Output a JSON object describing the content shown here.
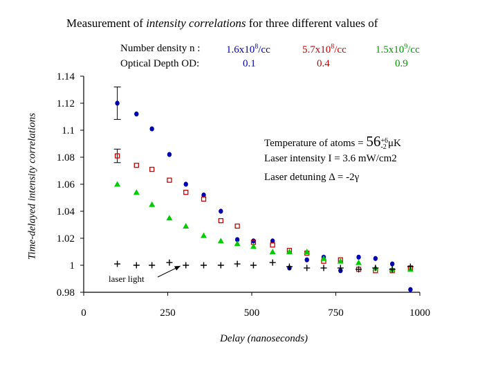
{
  "title": {
    "prefix": "Measurement of ",
    "emph": "intensity correlations",
    "suffix": " for three different values of"
  },
  "legend": {
    "density_label": "Number density n :",
    "od_label": "Optical Depth OD:",
    "series": [
      {
        "density": "1.6x10^8/cc",
        "density_base": "1.6x10",
        "density_exp": "8",
        "density_unit": "/cc",
        "od": "0.1",
        "color": "#0000b4"
      },
      {
        "density": "5.7x10^8/cc",
        "density_base": "5.7x10",
        "density_exp": "8",
        "density_unit": "/cc",
        "od": "0.4",
        "color": "#cc0000"
      },
      {
        "density": "1.5x10^9/cc",
        "density_base": "1.5x10",
        "density_exp": "9",
        "density_unit": "/cc",
        "od": "0.9",
        "color": "#009900"
      }
    ]
  },
  "conditions": {
    "temperature_label": "Temperature of atoms  =",
    "temperature_value": "56",
    "temperature_err_plus": "+6",
    "temperature_err_minus": "-2",
    "temperature_unit": "μK",
    "laser_intensity": "Laser intensity I = 3.6 mW/cm2",
    "laser_detuning": "Laser detuning Δ = -2γ"
  },
  "annotation": {
    "text": "laser light"
  },
  "chart_data": {
    "type": "scatter",
    "title": "Measurement of intensity correlations for three different values of",
    "xlabel": "Delay  (nanoseconds)",
    "ylabel": "Time-delayed intensity correlations",
    "xlim": [
      0,
      1000
    ],
    "ylim": [
      0.98,
      1.14
    ],
    "xticks": [
      0,
      250,
      500,
      750,
      1000
    ],
    "xtick_labels": [
      "0",
      "250",
      "500",
      "750",
      "1000"
    ],
    "yticks": [
      0.98,
      1.0,
      1.02,
      1.04,
      1.06,
      1.08,
      1.1,
      1.12,
      1.14
    ],
    "ytick_labels": [
      "0.98",
      "1",
      "1.02",
      "1.04",
      "1.06",
      "1.08",
      "1.1",
      "1.12",
      "1.14"
    ],
    "grid": false,
    "series": [
      {
        "name": "n = 1.6x10^8/cc, OD 0.1",
        "marker": "filled-circle",
        "color": "#0000b4",
        "x": [
          100,
          157,
          203,
          255,
          304,
          357,
          408,
          457,
          505,
          562,
          612,
          664,
          714,
          764,
          818,
          868,
          918,
          972
        ],
        "y": [
          1.12,
          1.112,
          1.101,
          1.082,
          1.06,
          1.052,
          1.04,
          1.019,
          1.018,
          1.018,
          0.998,
          1.004,
          1.006,
          0.996,
          1.006,
          1.005,
          1.001,
          0.982
        ]
      },
      {
        "name": "n = 5.7x10^8/cc, OD 0.4",
        "marker": "open-square",
        "color": "#cc0000",
        "x": [
          100,
          157,
          203,
          255,
          304,
          357,
          408,
          457,
          505,
          562,
          612,
          664,
          714,
          764,
          818,
          868,
          918,
          972
        ],
        "y": [
          1.081,
          1.074,
          1.071,
          1.063,
          1.054,
          1.049,
          1.033,
          1.029,
          1.017,
          1.015,
          1.011,
          1.009,
          1.003,
          1.004,
          0.997,
          0.996,
          0.996,
          0.998
        ]
      },
      {
        "name": "n = 1.5x10^9/cc, OD 0.9",
        "marker": "filled-triangle",
        "color": "#00cc00",
        "x": [
          100,
          157,
          203,
          255,
          304,
          357,
          408,
          457,
          505,
          562,
          612,
          664,
          714,
          764,
          818,
          868,
          918,
          972
        ],
        "y": [
          1.06,
          1.054,
          1.045,
          1.035,
          1.029,
          1.022,
          1.018,
          1.016,
          1.014,
          1.01,
          1.01,
          1.01,
          1.005,
          1.003,
          1.002,
          0.998,
          0.997,
          0.997
        ]
      },
      {
        "name": "laser light",
        "marker": "plus",
        "color": "#000000",
        "x": [
          100,
          157,
          203,
          255,
          304,
          357,
          408,
          457,
          505,
          562,
          612,
          664,
          714,
          764,
          818,
          868,
          918,
          972
        ],
        "y": [
          1.001,
          1.0,
          1.0,
          1.002,
          1.0,
          1.0,
          1.0,
          1.001,
          1.0,
          1.002,
          0.999,
          0.998,
          0.998,
          0.998,
          0.997,
          0.998,
          0.997,
          0.999
        ]
      }
    ],
    "error_bars": [
      {
        "series": 0,
        "x": 100,
        "low": 1.108,
        "high": 1.132
      },
      {
        "series": 1,
        "x": 100,
        "low": 1.076,
        "high": 1.086
      }
    ],
    "annotations": [
      {
        "text": "laser light",
        "arrow_to": [
          304,
          1.0
        ]
      }
    ]
  }
}
